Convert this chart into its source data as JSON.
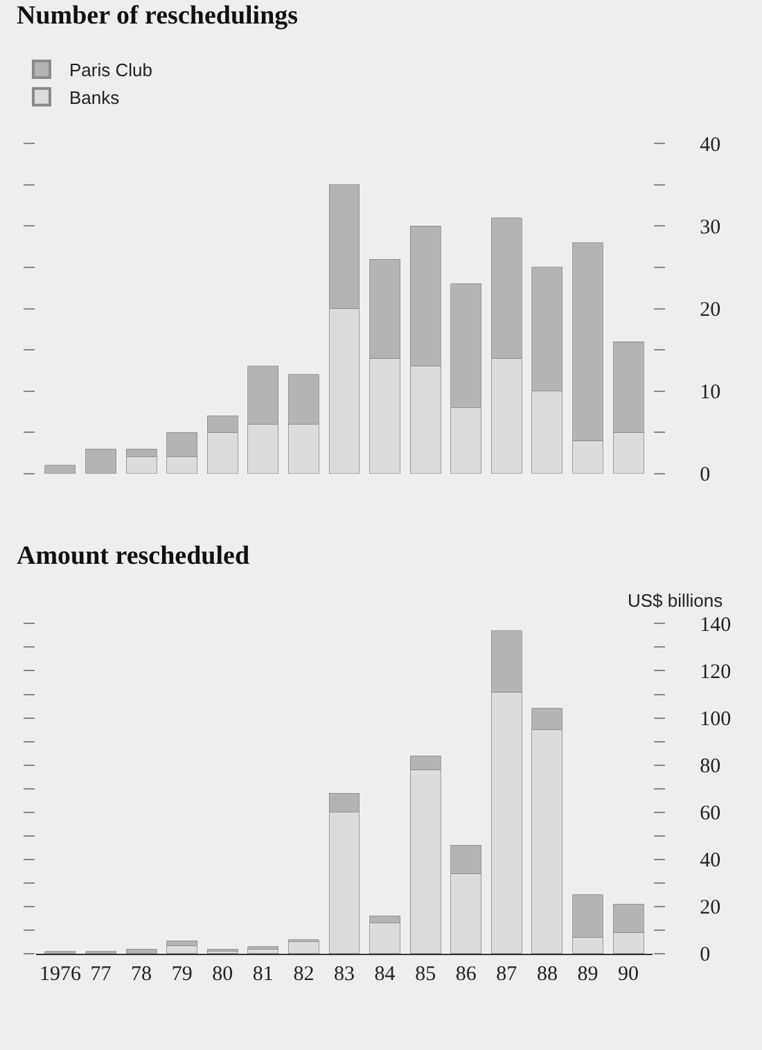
{
  "chart_data": [
    {
      "type": "bar",
      "title": "Number of reschedulings",
      "stacked": true,
      "legend": "top left",
      "tick_labels": "y",
      "categories": [
        "1976",
        "77",
        "78",
        "79",
        "80",
        "81",
        "82",
        "83",
        "84",
        "85",
        "86",
        "87",
        "88",
        "89",
        "90"
      ],
      "series": [
        {
          "name": "Banks",
          "color": "#dcdcdc",
          "values": [
            null,
            null,
            2,
            2,
            5,
            6,
            6,
            20,
            14,
            13,
            8,
            14,
            10,
            4,
            5
          ]
        },
        {
          "name": "Paris Club",
          "color": "#b4b4b4",
          "values": [
            1,
            3,
            1,
            3,
            2,
            7,
            6,
            15,
            12,
            17,
            15,
            17,
            15,
            24,
            11
          ]
        }
      ],
      "ylim": [
        0,
        40
      ],
      "yticks": [
        0,
        {
          "value": 5,
          "label": null
        },
        10,
        {
          "value": 15,
          "label": null
        },
        20,
        {
          "value": 25,
          "label": null
        },
        30,
        {
          "value": 35,
          "label": null
        },
        40
      ]
    },
    {
      "type": "bar",
      "title": "Amount rescheduled",
      "ylabel": "US$ billions",
      "stacked": true,
      "categories": [
        "1976",
        "77",
        "78",
        "79",
        "80",
        "81",
        "82",
        "83",
        "84",
        "85",
        "86",
        "87",
        "88",
        "89",
        "90"
      ],
      "series": [
        {
          "color": "#dcdcdc",
          "values": [
            null,
            null,
            null,
            3.5,
            1,
            2,
            5,
            60,
            13,
            78,
            34,
            111,
            95,
            7,
            9
          ]
        },
        {
          "color": "#b4b4b4",
          "values": [
            1,
            1,
            2,
            2,
            1,
            1,
            1,
            8,
            3,
            6,
            12,
            26,
            9,
            18,
            12
          ]
        }
      ],
      "ylim": [
        0,
        140
      ],
      "yticks": [
        0,
        {
          "value": 10,
          "label": null
        },
        20,
        {
          "value": 30,
          "label": null
        },
        40,
        {
          "value": 50,
          "label": null
        },
        60,
        {
          "value": 70,
          "label": null
        },
        80,
        {
          "value": 90,
          "label": null
        },
        100,
        {
          "value": 110,
          "label": null
        },
        120,
        {
          "value": 130,
          "label": null
        },
        140
      ]
    }
  ]
}
